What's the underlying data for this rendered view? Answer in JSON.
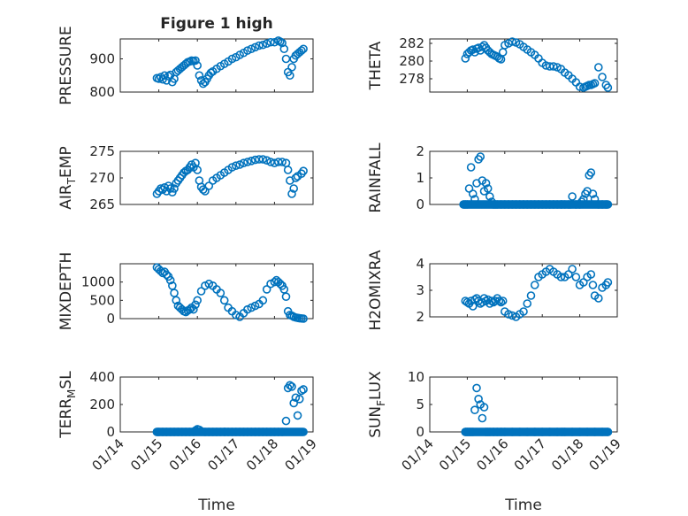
{
  "colors": {
    "marker": "#0072BD",
    "axis": "#262626",
    "grid": "#c8c8c8"
  },
  "chart_data": [
    {
      "id": "pressure",
      "type": "scatter",
      "title": "Figure 1 high",
      "ylabel": "PRESSURE",
      "ylim": [
        800,
        960
      ],
      "yticks": [
        800,
        900
      ],
      "ytick_labels": [
        "800",
        "900"
      ],
      "xlim": [
        14,
        19
      ],
      "xticks": [
        14,
        15,
        16,
        17,
        18,
        19
      ],
      "xtick_labels": [],
      "xlabel": "",
      "x": [
        14.95,
        15.0,
        15.05,
        15.1,
        15.15,
        15.2,
        15.25,
        15.3,
        15.35,
        15.4,
        15.45,
        15.5,
        15.55,
        15.6,
        15.65,
        15.7,
        15.75,
        15.8,
        15.85,
        15.9,
        15.95,
        16.0,
        16.05,
        16.1,
        16.15,
        16.2,
        16.25,
        16.3,
        16.35,
        16.4,
        16.5,
        16.6,
        16.7,
        16.8,
        16.9,
        17.0,
        17.1,
        17.2,
        17.3,
        17.4,
        17.5,
        17.6,
        17.7,
        17.8,
        17.9,
        18.0,
        18.1,
        18.15,
        18.2,
        18.25,
        18.3,
        18.35,
        18.4,
        18.45,
        18.5,
        18.55,
        18.6,
        18.65,
        18.7,
        18.75
      ],
      "y": [
        842,
        840,
        845,
        838,
        850,
        835,
        848,
        852,
        830,
        840,
        860,
        865,
        870,
        875,
        880,
        885,
        890,
        892,
        895,
        893,
        895,
        880,
        850,
        835,
        825,
        830,
        840,
        850,
        858,
        862,
        870,
        878,
        885,
        892,
        900,
        905,
        912,
        918,
        925,
        930,
        935,
        940,
        942,
        946,
        950,
        950,
        955,
        952,
        948,
        930,
        900,
        860,
        850,
        875,
        900,
        910,
        915,
        920,
        925,
        930
      ]
    },
    {
      "id": "theta",
      "type": "scatter",
      "title": "",
      "ylabel": "THETA",
      "ylim": [
        276.5,
        282.5
      ],
      "yticks": [
        278,
        280,
        282
      ],
      "ytick_labels": [
        "278",
        "280",
        "282"
      ],
      "xlim": [
        14,
        19
      ],
      "xticks": [
        14,
        15,
        16,
        17,
        18,
        19
      ],
      "xtick_labels": [],
      "xlabel": "",
      "x": [
        14.95,
        15.0,
        15.05,
        15.1,
        15.15,
        15.2,
        15.25,
        15.3,
        15.35,
        15.4,
        15.45,
        15.5,
        15.55,
        15.6,
        15.65,
        15.7,
        15.75,
        15.8,
        15.85,
        15.9,
        15.95,
        16.0,
        16.1,
        16.2,
        16.3,
        16.4,
        16.5,
        16.6,
        16.7,
        16.8,
        16.9,
        17.0,
        17.1,
        17.2,
        17.3,
        17.4,
        17.5,
        17.6,
        17.7,
        17.8,
        17.9,
        18.0,
        18.1,
        18.15,
        18.2,
        18.25,
        18.3,
        18.35,
        18.4,
        18.5,
        18.6,
        18.7,
        18.75
      ],
      "y": [
        280.3,
        280.8,
        281.0,
        281.2,
        281.3,
        281.0,
        281.4,
        281.5,
        281.2,
        281.6,
        281.8,
        281.5,
        281.2,
        281.0,
        280.8,
        280.7,
        280.6,
        280.5,
        280.3,
        280.2,
        281.0,
        281.8,
        282.0,
        282.2,
        282.1,
        281.9,
        281.6,
        281.3,
        281.0,
        280.7,
        280.3,
        279.8,
        279.5,
        279.4,
        279.4,
        279.3,
        279.1,
        278.7,
        278.4,
        278.0,
        277.6,
        277.1,
        277.0,
        277.1,
        277.2,
        277.3,
        277.3,
        277.4,
        277.5,
        279.3,
        278.2,
        277.3,
        277.0
      ]
    },
    {
      "id": "airtemp",
      "type": "scatter",
      "title": "",
      "ylabel": "AIR_TEMP",
      "ylabel_main": "AIR",
      "ylabel_sub": "T",
      "ylabel_rest": "EMP",
      "ylim": [
        265,
        275
      ],
      "yticks": [
        265,
        270,
        275
      ],
      "ytick_labels": [
        "265",
        "270",
        "275"
      ],
      "xlim": [
        14,
        19
      ],
      "xticks": [
        14,
        15,
        16,
        17,
        18,
        19
      ],
      "xtick_labels": [],
      "xlabel": "",
      "x": [
        14.95,
        15.0,
        15.05,
        15.1,
        15.15,
        15.2,
        15.25,
        15.3,
        15.35,
        15.4,
        15.45,
        15.5,
        15.55,
        15.6,
        15.65,
        15.7,
        15.75,
        15.8,
        15.85,
        15.9,
        15.95,
        16.0,
        16.05,
        16.1,
        16.15,
        16.2,
        16.3,
        16.4,
        16.5,
        16.6,
        16.7,
        16.8,
        16.9,
        17.0,
        17.1,
        17.2,
        17.3,
        17.4,
        17.5,
        17.6,
        17.7,
        17.8,
        17.9,
        18.0,
        18.1,
        18.2,
        18.3,
        18.35,
        18.4,
        18.45,
        18.5,
        18.55,
        18.6,
        18.7,
        18.75
      ],
      "y": [
        267.0,
        267.5,
        268.0,
        267.8,
        268.2,
        267.5,
        268.5,
        268.0,
        267.3,
        268.0,
        269.0,
        269.5,
        270.0,
        270.5,
        271.0,
        271.3,
        271.5,
        272.0,
        272.5,
        272.0,
        272.8,
        271.5,
        269.5,
        268.3,
        267.8,
        267.5,
        268.5,
        269.5,
        270.0,
        270.5,
        271.0,
        271.5,
        272.0,
        272.3,
        272.5,
        272.8,
        273.0,
        273.2,
        273.4,
        273.5,
        273.5,
        273.3,
        273.0,
        272.8,
        273.0,
        273.0,
        272.8,
        271.5,
        269.5,
        267.0,
        268.0,
        270.0,
        270.3,
        270.8,
        271.3
      ]
    },
    {
      "id": "rainfall",
      "type": "scatter",
      "title": "",
      "ylabel": "RAINFALL",
      "ylim": [
        0,
        2
      ],
      "yticks": [
        0,
        1,
        2
      ],
      "ytick_labels": [
        "0",
        "1",
        "2"
      ],
      "xlim": [
        14,
        19
      ],
      "xticks": [
        14,
        15,
        16,
        17,
        18,
        19
      ],
      "xtick_labels": [],
      "xlabel": "",
      "x": [
        14.9,
        14.95,
        15.0,
        15.05,
        15.1,
        15.15,
        15.2,
        15.25,
        15.3,
        15.35,
        15.4,
        15.45,
        15.5,
        15.55,
        15.6,
        15.65,
        15.7,
        15.75,
        15.8,
        15.9,
        16.0,
        16.1,
        16.2,
        16.3,
        16.4,
        16.5,
        16.6,
        16.7,
        16.8,
        16.9,
        17.0,
        17.1,
        17.2,
        17.3,
        17.4,
        17.5,
        17.6,
        17.7,
        17.75,
        17.8,
        17.9,
        18.0,
        18.05,
        18.1,
        18.15,
        18.2,
        18.25,
        18.3,
        18.35,
        18.4,
        18.5,
        18.6,
        18.7,
        18.75
      ],
      "y": [
        0,
        0,
        0,
        0.6,
        1.4,
        0.4,
        0.2,
        0.8,
        1.7,
        1.8,
        0.9,
        0.5,
        0.8,
        0.6,
        0.3,
        0.1,
        0,
        0,
        0,
        0,
        0,
        0,
        0,
        0,
        0,
        0,
        0,
        0,
        0,
        0,
        0,
        0,
        0,
        0,
        0,
        0,
        0,
        0,
        0,
        0.3,
        0,
        0,
        0.1,
        0.2,
        0.4,
        0.5,
        1.1,
        1.2,
        0.4,
        0.2,
        0,
        0,
        0,
        0
      ]
    },
    {
      "id": "mixdepth",
      "type": "scatter",
      "title": "",
      "ylabel": "MIXDEPTH",
      "ylim": [
        0,
        1500
      ],
      "yticks": [
        0,
        500,
        1000
      ],
      "ytick_labels": [
        "0",
        "500",
        "1000"
      ],
      "xlim": [
        14,
        19
      ],
      "xticks": [
        14,
        15,
        16,
        17,
        18,
        19
      ],
      "xtick_labels": [],
      "xlabel": "",
      "x": [
        14.95,
        15.0,
        15.05,
        15.1,
        15.15,
        15.2,
        15.25,
        15.3,
        15.35,
        15.4,
        15.45,
        15.5,
        15.55,
        15.6,
        15.65,
        15.7,
        15.75,
        15.8,
        15.85,
        15.9,
        15.95,
        16.0,
        16.1,
        16.2,
        16.3,
        16.4,
        16.5,
        16.6,
        16.7,
        16.8,
        16.9,
        17.0,
        17.1,
        17.2,
        17.3,
        17.4,
        17.5,
        17.6,
        17.7,
        17.8,
        17.9,
        18.0,
        18.05,
        18.1,
        18.15,
        18.2,
        18.25,
        18.3,
        18.35,
        18.4,
        18.45,
        18.5,
        18.55,
        18.6,
        18.65,
        18.7,
        18.75
      ],
      "y": [
        1400,
        1350,
        1300,
        1250,
        1280,
        1200,
        1150,
        1050,
        900,
        700,
        500,
        350,
        300,
        250,
        200,
        180,
        220,
        250,
        300,
        250,
        380,
        500,
        750,
        900,
        950,
        900,
        800,
        700,
        500,
        300,
        200,
        100,
        50,
        150,
        250,
        300,
        350,
        400,
        500,
        800,
        950,
        1000,
        1050,
        1000,
        950,
        900,
        800,
        600,
        200,
        100,
        80,
        50,
        30,
        20,
        10,
        5,
        0
      ]
    },
    {
      "id": "h2omixra",
      "type": "scatter",
      "title": "",
      "ylabel": "H2OMIXRA",
      "ylim": [
        2,
        4
      ],
      "yticks": [
        2,
        3,
        4
      ],
      "ytick_labels": [
        "2",
        "3",
        "4"
      ],
      "xlim": [
        14,
        19
      ],
      "xticks": [
        14,
        15,
        16,
        17,
        18,
        19
      ],
      "xtick_labels": [],
      "xlabel": "",
      "x": [
        14.95,
        15.0,
        15.05,
        15.1,
        15.15,
        15.2,
        15.25,
        15.3,
        15.35,
        15.4,
        15.45,
        15.5,
        15.55,
        15.6,
        15.65,
        15.7,
        15.75,
        15.8,
        15.85,
        15.9,
        15.95,
        16.0,
        16.1,
        16.2,
        16.3,
        16.4,
        16.5,
        16.6,
        16.7,
        16.8,
        16.9,
        17.0,
        17.1,
        17.2,
        17.3,
        17.4,
        17.5,
        17.6,
        17.7,
        17.8,
        17.9,
        18.0,
        18.1,
        18.2,
        18.3,
        18.35,
        18.4,
        18.5,
        18.6,
        18.7,
        18.75
      ],
      "y": [
        2.6,
        2.55,
        2.5,
        2.6,
        2.4,
        2.65,
        2.7,
        2.6,
        2.5,
        2.55,
        2.7,
        2.6,
        2.65,
        2.5,
        2.6,
        2.55,
        2.6,
        2.7,
        2.6,
        2.55,
        2.6,
        2.2,
        2.1,
        2.05,
        2.0,
        2.1,
        2.2,
        2.5,
        2.8,
        3.2,
        3.5,
        3.6,
        3.7,
        3.8,
        3.7,
        3.6,
        3.5,
        3.5,
        3.6,
        3.8,
        3.5,
        3.2,
        3.3,
        3.5,
        3.6,
        3.2,
        2.8,
        2.7,
        3.1,
        3.2,
        3.3
      ]
    },
    {
      "id": "terrmsl",
      "type": "scatter",
      "title": "",
      "ylabel": "TERR_MSL",
      "ylabel_main": "TERR",
      "ylabel_sub": "M",
      "ylabel_rest": "SL",
      "ylim": [
        0,
        400
      ],
      "yticks": [
        0,
        200,
        400
      ],
      "ytick_labels": [
        "0",
        "200",
        "400"
      ],
      "xlim": [
        14,
        19
      ],
      "xticks": [
        14,
        15,
        16,
        17,
        18,
        19
      ],
      "xtick_labels": [
        "01/14",
        "01/15",
        "01/16",
        "01/17",
        "01/18",
        "01/19"
      ],
      "xlabel": "Time",
      "x": [
        14.95,
        15.0,
        15.1,
        15.2,
        15.3,
        15.4,
        15.5,
        15.6,
        15.7,
        15.8,
        15.9,
        15.95,
        16.0,
        16.05,
        16.1,
        16.2,
        16.3,
        16.4,
        16.5,
        16.6,
        16.7,
        16.8,
        16.9,
        17.0,
        17.1,
        17.2,
        17.3,
        17.4,
        17.5,
        17.6,
        17.7,
        17.8,
        17.9,
        18.0,
        18.1,
        18.2,
        18.3,
        18.35,
        18.4,
        18.45,
        18.5,
        18.55,
        18.6,
        18.65,
        18.7,
        18.75
      ],
      "y": [
        0,
        0,
        0,
        0,
        0,
        0,
        0,
        0,
        0,
        0,
        0,
        10,
        20,
        15,
        5,
        0,
        0,
        0,
        0,
        0,
        0,
        0,
        0,
        0,
        0,
        0,
        0,
        0,
        0,
        0,
        0,
        0,
        0,
        0,
        0,
        0,
        80,
        320,
        340,
        330,
        210,
        250,
        120,
        240,
        300,
        310
      ]
    },
    {
      "id": "sunflux",
      "type": "scatter",
      "title": "",
      "ylabel": "SUN_FLUX",
      "ylabel_main": "SUN",
      "ylabel_sub": "F",
      "ylabel_rest": "LUX",
      "ylim": [
        0,
        10
      ],
      "yticks": [
        0,
        5,
        10
      ],
      "ytick_labels": [
        "0",
        "5",
        "10"
      ],
      "xlim": [
        14,
        19
      ],
      "xticks": [
        14,
        15,
        16,
        17,
        18,
        19
      ],
      "xtick_labels": [
        "01/14",
        "01/15",
        "01/16",
        "01/17",
        "01/18",
        "01/19"
      ],
      "xlabel": "Time",
      "x": [
        14.95,
        15.0,
        15.05,
        15.1,
        15.15,
        15.2,
        15.25,
        15.3,
        15.35,
        15.4,
        15.45,
        15.5,
        15.55,
        15.6,
        15.7,
        15.8,
        15.9,
        16.0,
        16.2,
        16.4,
        16.6,
        16.8,
        17.0,
        17.2,
        17.4,
        17.6,
        17.8,
        18.0,
        18.2,
        18.4,
        18.6,
        18.75
      ],
      "y": [
        0,
        0,
        0,
        0,
        0,
        4,
        8,
        6,
        5,
        2.5,
        4.5,
        0,
        0,
        0,
        0,
        0,
        0,
        0,
        0,
        0,
        0,
        0,
        0,
        0,
        0,
        0,
        0,
        0,
        0,
        0,
        0,
        0
      ]
    }
  ]
}
